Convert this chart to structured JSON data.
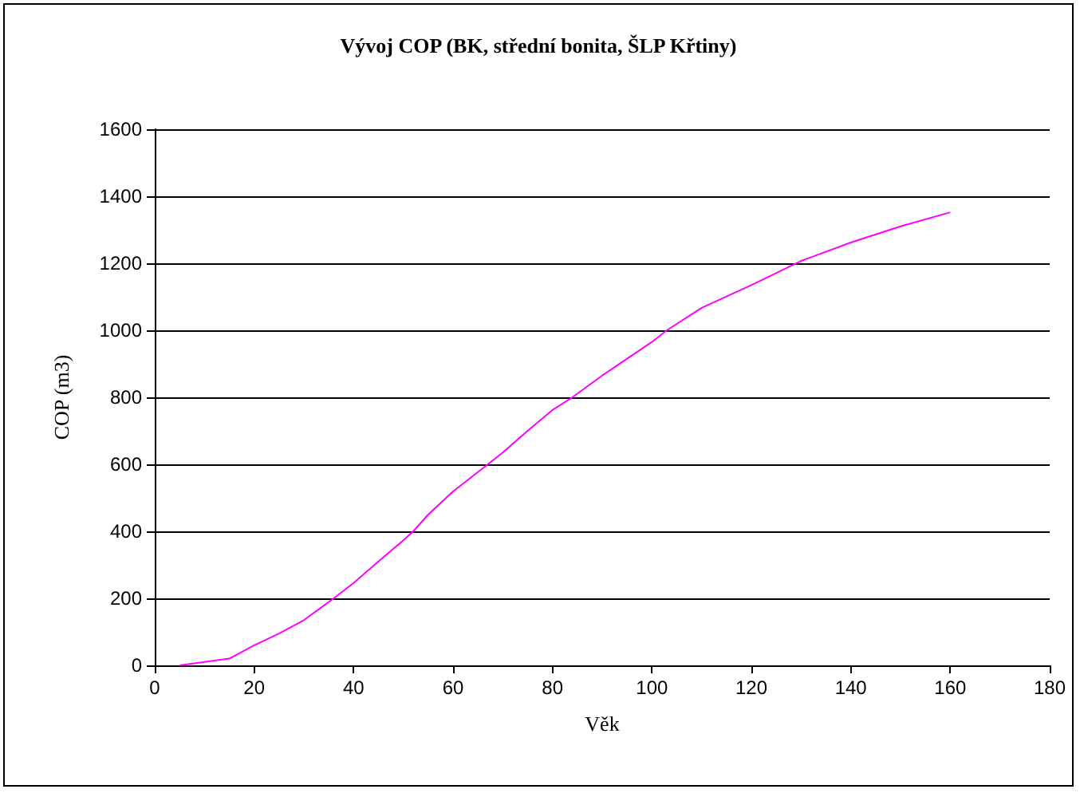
{
  "chart_data": {
    "type": "line",
    "title": "Vývoj COP (BK, střední bonita, ŠLP Křtiny)",
    "xlabel": "Věk",
    "ylabel": "COP (m3)",
    "x": [
      5,
      10,
      15,
      20,
      25,
      30,
      36,
      40,
      45,
      50,
      52,
      55,
      60,
      67,
      70,
      75,
      80,
      84,
      90,
      95,
      100,
      103,
      110,
      120,
      130,
      140,
      150,
      160
    ],
    "series": [
      {
        "color": "#ff00ff",
        "values": [
          0,
          10,
          20,
          60,
          95,
          135,
          200,
          246,
          310,
          373,
          400,
          450,
          519,
          600,
          635,
          700,
          762,
          800,
          865,
          915,
          965,
          1000,
          1067,
          1135,
          1207,
          1262,
          1310,
          1352
        ]
      }
    ],
    "xlim": [
      0,
      180
    ],
    "xticks": [
      0,
      20,
      40,
      60,
      80,
      100,
      120,
      140,
      160,
      180
    ],
    "ylim": [
      0,
      1600
    ],
    "yticks": [
      0,
      200,
      400,
      600,
      800,
      1000,
      1200,
      1400,
      1600
    ],
    "grid": "y",
    "marker": "none",
    "line_style": "solid"
  }
}
